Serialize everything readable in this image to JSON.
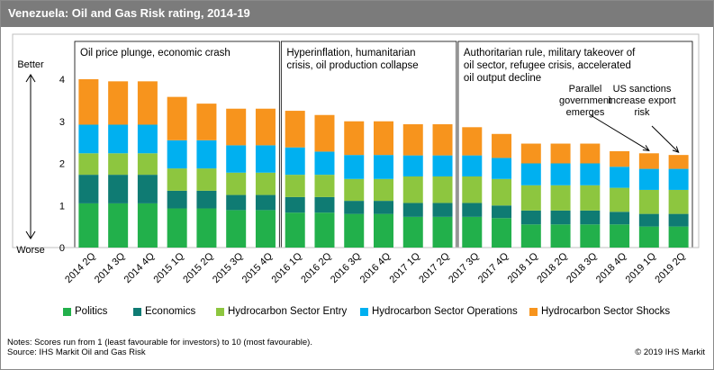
{
  "title": "Venezuela: Oil and Gas Risk rating, 2014-19",
  "axis_top_label": "Better",
  "axis_bottom_label": "Worse",
  "notes_line1": "Notes: Scores run from 1 (least favourable for investors) to 10 (most favourable).",
  "notes_line2": "Source: IHS Markit Oil and Gas Risk",
  "copyright": "© 2019 IHS Markit",
  "colors": {
    "politics": "#22b04b",
    "economics": "#0f7b73",
    "entry": "#8dc63f",
    "operations": "#00b0f0",
    "shocks": "#f7941d",
    "title_bar": "#7b7b7b"
  },
  "chart_data": {
    "type": "bar",
    "stacked": true,
    "ylim": [
      0,
      4
    ],
    "yticks": [
      "0",
      "1",
      "2",
      "3",
      "4"
    ],
    "categories": [
      "2014 2Q",
      "2014 3Q",
      "2014 4Q",
      "2015 1Q",
      "2015 2Q",
      "2015 3Q",
      "2015 4Q",
      "2016 1Q",
      "2016 2Q",
      "2016 3Q",
      "2016 4Q",
      "2017 1Q",
      "2017 2Q",
      "2017 3Q",
      "2017 4Q",
      "2018 1Q",
      "2018 2Q",
      "2018 3Q",
      "2018 4Q",
      "2019 1Q",
      "2019 2Q"
    ],
    "series": [
      {
        "name": "Politics",
        "values": [
          1.05,
          1.05,
          1.05,
          0.93,
          0.93,
          0.89,
          0.89,
          0.83,
          0.83,
          0.8,
          0.8,
          0.73,
          0.73,
          0.73,
          0.7,
          0.55,
          0.55,
          0.55,
          0.55,
          0.5,
          0.5
        ]
      },
      {
        "name": "Economics",
        "values": [
          0.68,
          0.68,
          0.68,
          0.42,
          0.42,
          0.36,
          0.36,
          0.37,
          0.37,
          0.31,
          0.31,
          0.33,
          0.33,
          0.33,
          0.3,
          0.33,
          0.33,
          0.33,
          0.3,
          0.3,
          0.3
        ]
      },
      {
        "name": "Hydrocarbon Sector Entry",
        "values": [
          0.51,
          0.51,
          0.51,
          0.53,
          0.53,
          0.53,
          0.53,
          0.53,
          0.53,
          0.52,
          0.52,
          0.63,
          0.63,
          0.63,
          0.63,
          0.6,
          0.6,
          0.6,
          0.57,
          0.57,
          0.57
        ]
      },
      {
        "name": "Hydrocarbon Sector Operations",
        "values": [
          0.68,
          0.68,
          0.68,
          0.67,
          0.67,
          0.65,
          0.65,
          0.65,
          0.55,
          0.57,
          0.57,
          0.5,
          0.5,
          0.5,
          0.5,
          0.52,
          0.52,
          0.52,
          0.5,
          0.5,
          0.5
        ]
      },
      {
        "name": "Hydrocarbon Sector Shocks",
        "values": [
          1.08,
          1.03,
          1.03,
          1.03,
          0.87,
          0.87,
          0.87,
          0.87,
          0.87,
          0.8,
          0.8,
          0.74,
          0.74,
          0.67,
          0.57,
          0.47,
          0.47,
          0.47,
          0.37,
          0.37,
          0.33
        ]
      }
    ],
    "periods": [
      {
        "label": "Oil price plunge, economic crash",
        "start": 0,
        "end": 6
      },
      {
        "label": "Hyperinflation, humanitarian crisis, oil production collapse",
        "start": 7,
        "end": 12
      },
      {
        "label": "Authoritarian rule, military takeover of oil sector, refugee crisis, accelerated oil output decline",
        "start": 13,
        "end": 20
      }
    ],
    "annotations": [
      {
        "label": "Parallel government emerges",
        "category": "2019 1Q"
      },
      {
        "label": "US sanctions increase export risk",
        "category": "2019 2Q"
      }
    ],
    "legend_position": "bottom"
  }
}
